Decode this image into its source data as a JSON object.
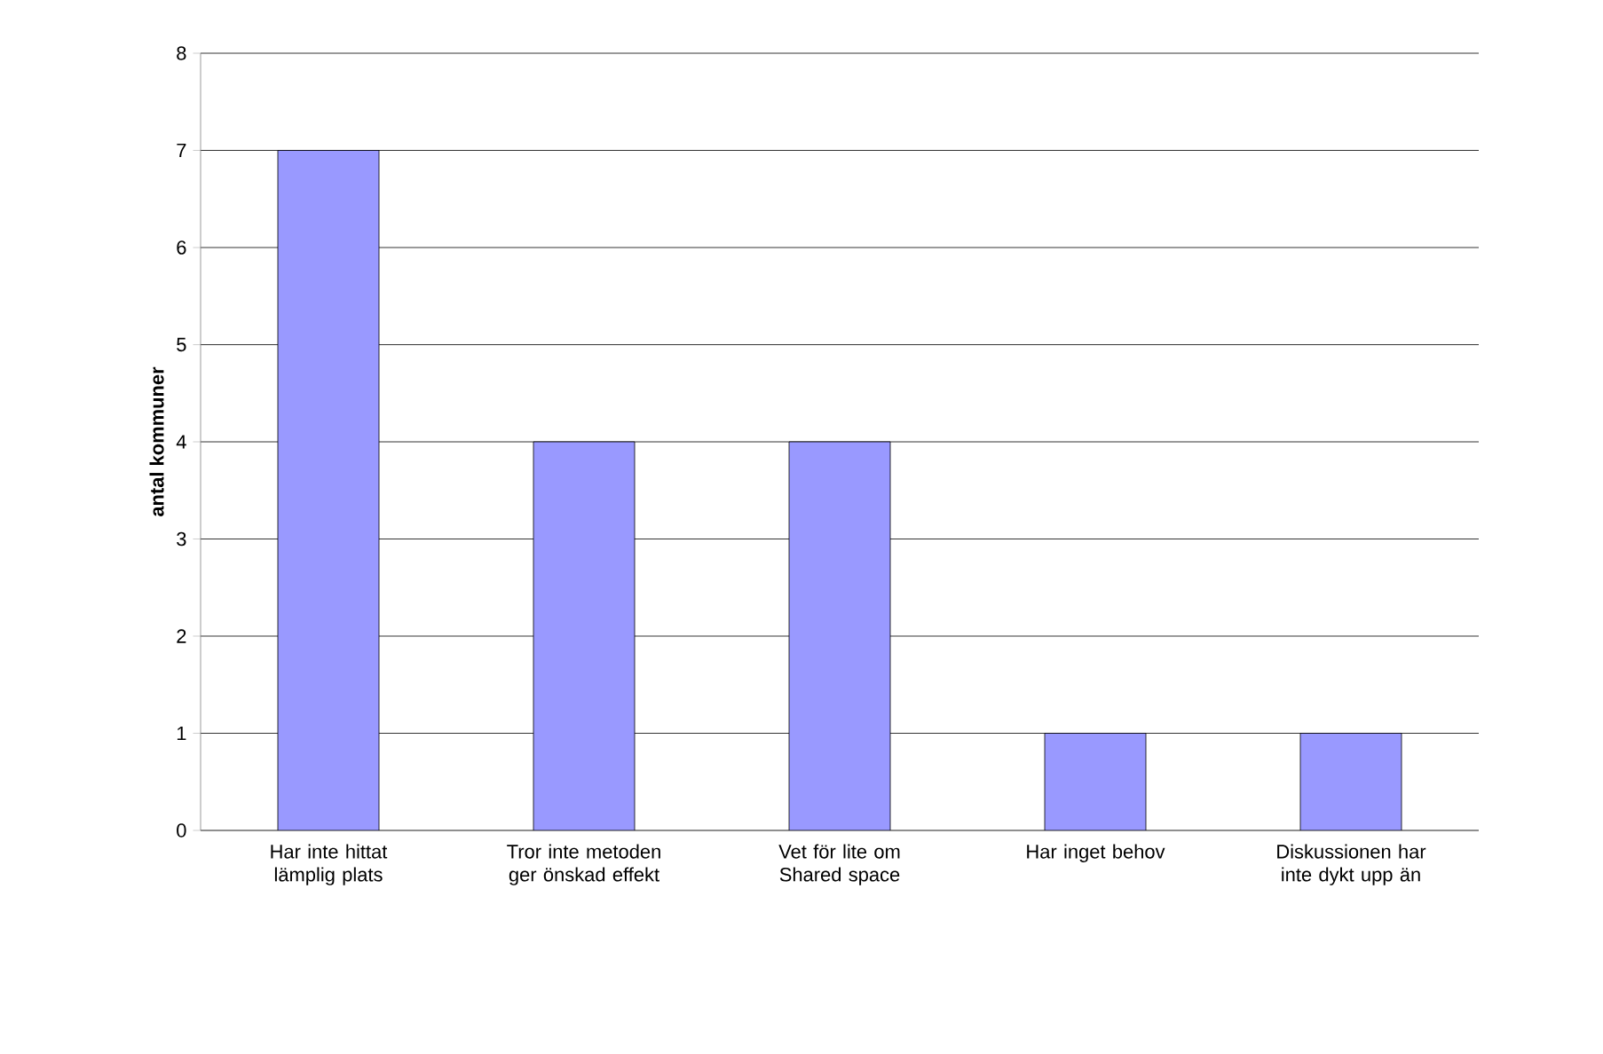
{
  "chart_data": {
    "type": "bar",
    "ylabel": "antal kommuner",
    "categories": [
      "Har inte hittat lämplig plats",
      "Tror inte metoden ger önskad effekt",
      "Vet för lite om Shared space",
      "Har inget behov",
      "Diskussionen har inte dykt upp än"
    ],
    "values": [
      7,
      4,
      4,
      1,
      1
    ],
    "color": "#9999ff",
    "ylim": [
      0,
      8
    ],
    "yticks": [
      0,
      1,
      2,
      3,
      4,
      5,
      6,
      7,
      8
    ],
    "grid": "y"
  }
}
